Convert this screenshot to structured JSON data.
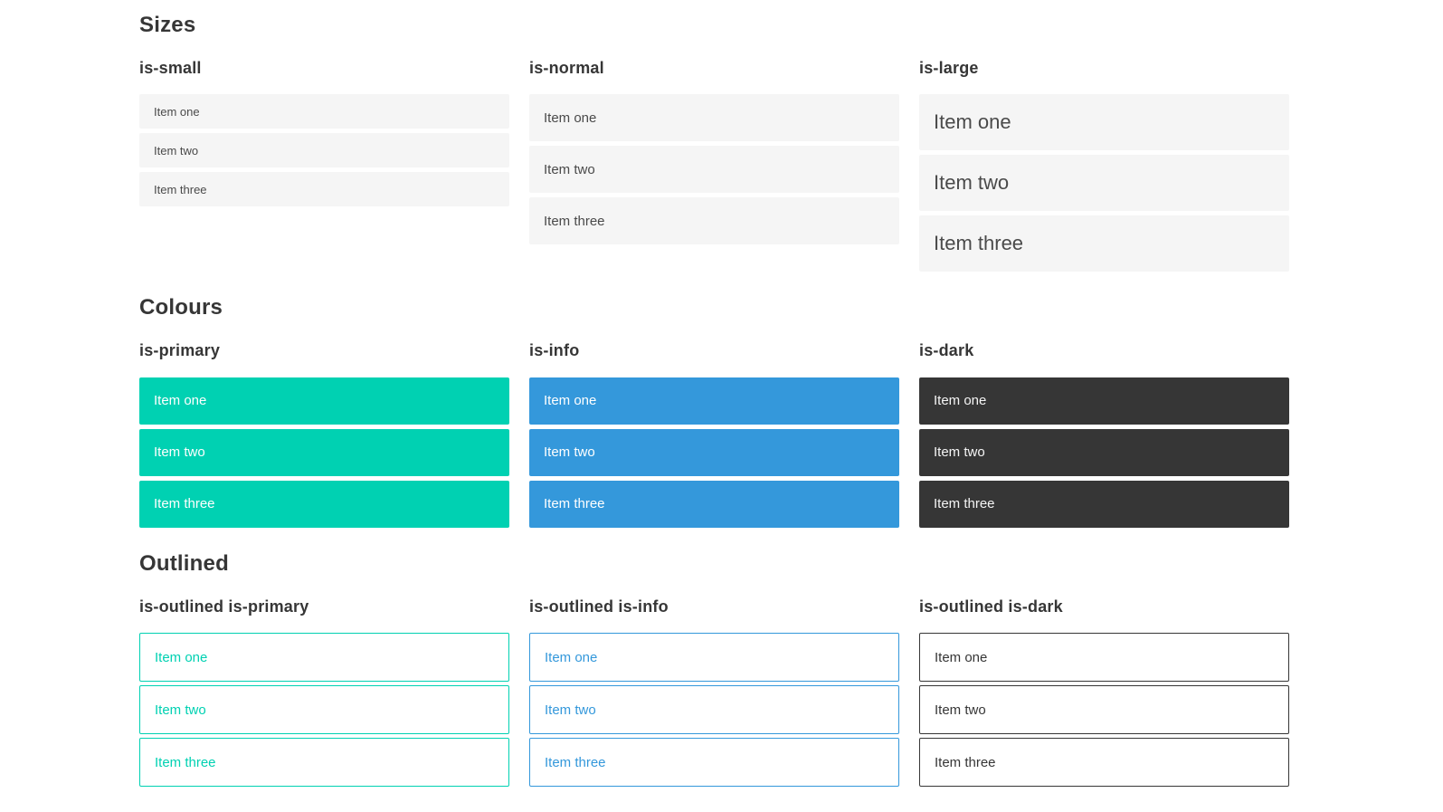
{
  "colors": {
    "primary": "#00d1b2",
    "info": "#3498db",
    "dark": "#363636",
    "heading": "#363636",
    "item_bg": "#f5f5f5",
    "item_text": "#4a4a4a",
    "page_bg": "#ffffff",
    "item_text_on_color": "#ffffff"
  },
  "sections": [
    {
      "title": "Sizes",
      "groups": [
        {
          "label": "is-small",
          "variant": "small",
          "items": [
            "Item one",
            "Item two",
            "Item three"
          ]
        },
        {
          "label": "is-normal",
          "variant": "normal",
          "items": [
            "Item one",
            "Item two",
            "Item three"
          ]
        },
        {
          "label": "is-large",
          "variant": "large",
          "items": [
            "Item one",
            "Item two",
            "Item three"
          ]
        }
      ]
    },
    {
      "title": "Colours",
      "groups": [
        {
          "label": "is-primary",
          "variant": "primary",
          "items": [
            "Item one",
            "Item two",
            "Item three"
          ]
        },
        {
          "label": "is-info",
          "variant": "info",
          "items": [
            "Item one",
            "Item two",
            "Item three"
          ]
        },
        {
          "label": "is-dark",
          "variant": "dark",
          "items": [
            "Item one",
            "Item two",
            "Item three"
          ]
        }
      ]
    },
    {
      "title": "Outlined",
      "groups": [
        {
          "label": "is-outlined is-primary",
          "variant": "outlined-primary",
          "items": [
            "Item one",
            "Item two",
            "Item three"
          ]
        },
        {
          "label": "is-outlined is-info",
          "variant": "outlined-info",
          "items": [
            "Item one",
            "Item two",
            "Item three"
          ]
        },
        {
          "label": "is-outlined is-dark",
          "variant": "outlined-dark",
          "items": [
            "Item one",
            "Item two",
            "Item three"
          ]
        }
      ]
    }
  ]
}
